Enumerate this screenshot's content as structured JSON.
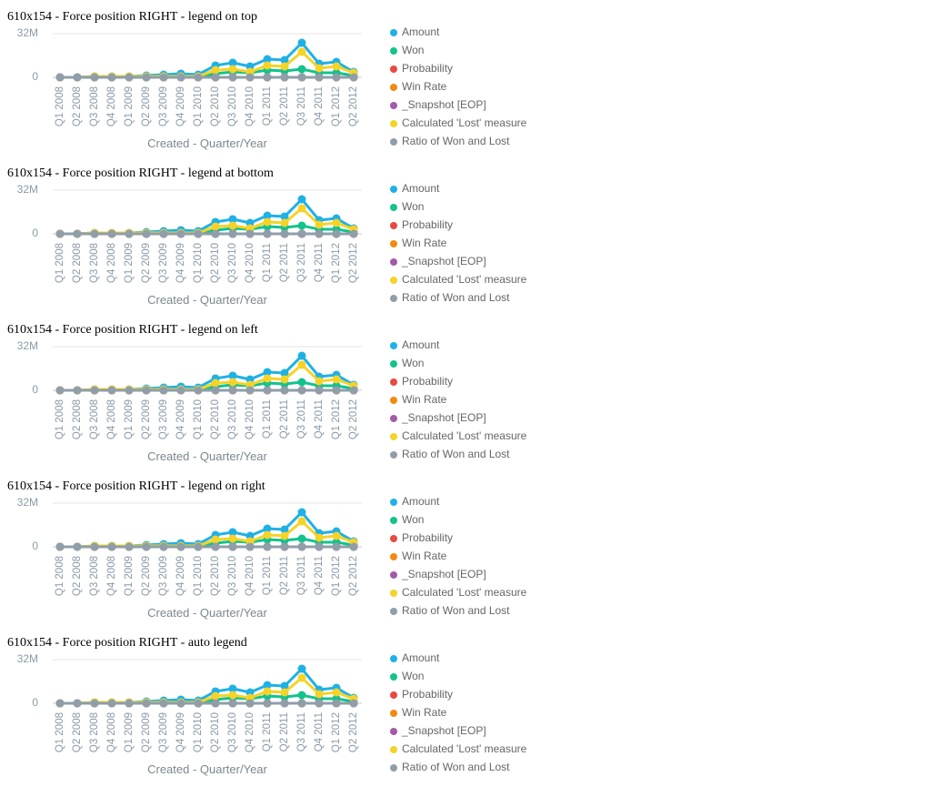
{
  "chart_data": [
    {
      "type": "line",
      "title": "610x154 - Force position RIGHT - legend on top",
      "x_label": "Created - Quarter/Year",
      "legend": "right",
      "grid": true,
      "categories": [
        "Q1 2008",
        "Q2 2008",
        "Q3 2008",
        "Q4 2008",
        "Q1 2009",
        "Q2 2009",
        "Q3 2009",
        "Q4 2009",
        "Q1 2010",
        "Q2 2010",
        "Q3 2010",
        "Q4 2010",
        "Q1 2011",
        "Q2 2011",
        "Q3 2011",
        "Q4 2011",
        "Q1 2012",
        "Q2 2012"
      ],
      "ylim": [
        0,
        32000000
      ],
      "yticks": [
        0,
        {
          "value": 32000000,
          "label": "32M"
        }
      ],
      "series": [
        {
          "name": "Amount",
          "color": "#1fb1e6",
          "values": [
            0,
            0,
            700000,
            700000,
            700000,
            1300000,
            2000000,
            2700000,
            2000000,
            8700000,
            10700000,
            8000000,
            13300000,
            12700000,
            25300000,
            10000000,
            11300000,
            4000000
          ]
        },
        {
          "name": "Won",
          "color": "#13c28d",
          "values": [
            0,
            0,
            0,
            0,
            0,
            0,
            0,
            0,
            0,
            2700000,
            4000000,
            3300000,
            5300000,
            4700000,
            6000000,
            3300000,
            3300000,
            1300000
          ]
        },
        {
          "name": "Probability",
          "color": "#e94a3f",
          "values": [
            0,
            0,
            0,
            0,
            0,
            0,
            0,
            0,
            0,
            0,
            0,
            0,
            0,
            0,
            0,
            0,
            0,
            0
          ]
        },
        {
          "name": "Win Rate",
          "color": "#f28a0f",
          "values": [
            0,
            0,
            0,
            0,
            0,
            0,
            0,
            0,
            0,
            0,
            0,
            0,
            0,
            0,
            0,
            0,
            0,
            0
          ]
        },
        {
          "name": "_Snapshot [EOP]",
          "color": "#a45aa8",
          "values": [
            0,
            0,
            0,
            0,
            0,
            0,
            0,
            0,
            0,
            0,
            0,
            0,
            0,
            0,
            0,
            0,
            0,
            0
          ]
        },
        {
          "name": "Calculated 'Lost' measure",
          "color": "#f5d327",
          "values": [
            0,
            0,
            700000,
            700000,
            700000,
            700000,
            700000,
            700000,
            700000,
            5300000,
            6000000,
            4000000,
            8700000,
            8000000,
            18700000,
            6700000,
            8000000,
            3300000
          ]
        },
        {
          "name": "Ratio of Won and Lost",
          "color": "#8f9ea9",
          "values": [
            0,
            0,
            0,
            0,
            0,
            0,
            0,
            0,
            0,
            0,
            0,
            0,
            0,
            0,
            0,
            0,
            0,
            0
          ]
        }
      ]
    },
    {
      "type": "line",
      "title": "610x154 - Force position RIGHT - legend at bottom",
      "x_label": "Created - Quarter/Year",
      "legend": "right",
      "grid": true,
      "categories": [
        "Q1 2008",
        "Q2 2008",
        "Q3 2008",
        "Q4 2008",
        "Q1 2009",
        "Q2 2009",
        "Q3 2009",
        "Q4 2009",
        "Q1 2010",
        "Q2 2010",
        "Q3 2010",
        "Q4 2010",
        "Q1 2011",
        "Q2 2011",
        "Q3 2011",
        "Q4 2011",
        "Q1 2012",
        "Q2 2012"
      ],
      "ylim": [
        0,
        32000000
      ],
      "yticks": [
        0,
        {
          "value": 32000000,
          "label": "32M"
        }
      ],
      "series": [
        {
          "name": "Amount",
          "color": "#1fb1e6",
          "values": [
            0,
            0,
            700000,
            700000,
            700000,
            1300000,
            2000000,
            2700000,
            2000000,
            8700000,
            10700000,
            8000000,
            13300000,
            12700000,
            25300000,
            10000000,
            11300000,
            4000000
          ]
        },
        {
          "name": "Won",
          "color": "#13c28d",
          "values": [
            0,
            0,
            0,
            0,
            0,
            0,
            0,
            0,
            0,
            2700000,
            4000000,
            3300000,
            5300000,
            4700000,
            6000000,
            3300000,
            3300000,
            1300000
          ]
        },
        {
          "name": "Probability",
          "color": "#e94a3f",
          "values": [
            0,
            0,
            0,
            0,
            0,
            0,
            0,
            0,
            0,
            0,
            0,
            0,
            0,
            0,
            0,
            0,
            0,
            0
          ]
        },
        {
          "name": "Win Rate",
          "color": "#f28a0f",
          "values": [
            0,
            0,
            0,
            0,
            0,
            0,
            0,
            0,
            0,
            0,
            0,
            0,
            0,
            0,
            0,
            0,
            0,
            0
          ]
        },
        {
          "name": "_Snapshot [EOP]",
          "color": "#a45aa8",
          "values": [
            0,
            0,
            0,
            0,
            0,
            0,
            0,
            0,
            0,
            0,
            0,
            0,
            0,
            0,
            0,
            0,
            0,
            0
          ]
        },
        {
          "name": "Calculated 'Lost' measure",
          "color": "#f5d327",
          "values": [
            0,
            0,
            700000,
            700000,
            700000,
            700000,
            700000,
            700000,
            700000,
            5300000,
            6000000,
            4000000,
            8700000,
            8000000,
            18700000,
            6700000,
            8000000,
            3300000
          ]
        },
        {
          "name": "Ratio of Won and Lost",
          "color": "#8f9ea9",
          "values": [
            0,
            0,
            0,
            0,
            0,
            0,
            0,
            0,
            0,
            0,
            0,
            0,
            0,
            0,
            0,
            0,
            0,
            0
          ]
        }
      ]
    },
    {
      "type": "line",
      "title": "610x154 - Force position RIGHT - legend on left",
      "x_label": "Created - Quarter/Year",
      "legend": "right",
      "grid": true,
      "categories": [
        "Q1 2008",
        "Q2 2008",
        "Q3 2008",
        "Q4 2008",
        "Q1 2009",
        "Q2 2009",
        "Q3 2009",
        "Q4 2009",
        "Q1 2010",
        "Q2 2010",
        "Q3 2010",
        "Q4 2010",
        "Q1 2011",
        "Q2 2011",
        "Q3 2011",
        "Q4 2011",
        "Q1 2012",
        "Q2 2012"
      ],
      "ylim": [
        0,
        32000000
      ],
      "yticks": [
        0,
        {
          "value": 32000000,
          "label": "32M"
        }
      ],
      "series": [
        {
          "name": "Amount",
          "color": "#1fb1e6",
          "values": [
            0,
            0,
            700000,
            700000,
            700000,
            1300000,
            2000000,
            2700000,
            2000000,
            8700000,
            10700000,
            8000000,
            13300000,
            12700000,
            25300000,
            10000000,
            11300000,
            4000000
          ]
        },
        {
          "name": "Won",
          "color": "#13c28d",
          "values": [
            0,
            0,
            0,
            0,
            0,
            0,
            0,
            0,
            0,
            2700000,
            4000000,
            3300000,
            5300000,
            4700000,
            6000000,
            3300000,
            3300000,
            1300000
          ]
        },
        {
          "name": "Probability",
          "color": "#e94a3f",
          "values": [
            0,
            0,
            0,
            0,
            0,
            0,
            0,
            0,
            0,
            0,
            0,
            0,
            0,
            0,
            0,
            0,
            0,
            0
          ]
        },
        {
          "name": "Win Rate",
          "color": "#f28a0f",
          "values": [
            0,
            0,
            0,
            0,
            0,
            0,
            0,
            0,
            0,
            0,
            0,
            0,
            0,
            0,
            0,
            0,
            0,
            0
          ]
        },
        {
          "name": "_Snapshot [EOP]",
          "color": "#a45aa8",
          "values": [
            0,
            0,
            0,
            0,
            0,
            0,
            0,
            0,
            0,
            0,
            0,
            0,
            0,
            0,
            0,
            0,
            0,
            0
          ]
        },
        {
          "name": "Calculated 'Lost' measure",
          "color": "#f5d327",
          "values": [
            0,
            0,
            700000,
            700000,
            700000,
            700000,
            700000,
            700000,
            700000,
            5300000,
            6000000,
            4000000,
            8700000,
            8000000,
            18700000,
            6700000,
            8000000,
            3300000
          ]
        },
        {
          "name": "Ratio of Won and Lost",
          "color": "#8f9ea9",
          "values": [
            0,
            0,
            0,
            0,
            0,
            0,
            0,
            0,
            0,
            0,
            0,
            0,
            0,
            0,
            0,
            0,
            0,
            0
          ]
        }
      ]
    },
    {
      "type": "line",
      "title": "610x154 - Force position RIGHT - legend on right",
      "x_label": "Created - Quarter/Year",
      "legend": "right",
      "grid": true,
      "categories": [
        "Q1 2008",
        "Q2 2008",
        "Q3 2008",
        "Q4 2008",
        "Q1 2009",
        "Q2 2009",
        "Q3 2009",
        "Q4 2009",
        "Q1 2010",
        "Q2 2010",
        "Q3 2010",
        "Q4 2010",
        "Q1 2011",
        "Q2 2011",
        "Q3 2011",
        "Q4 2011",
        "Q1 2012",
        "Q2 2012"
      ],
      "ylim": [
        0,
        32000000
      ],
      "yticks": [
        0,
        {
          "value": 32000000,
          "label": "32M"
        }
      ],
      "series": [
        {
          "name": "Amount",
          "color": "#1fb1e6",
          "values": [
            0,
            0,
            700000,
            700000,
            700000,
            1300000,
            2000000,
            2700000,
            2000000,
            8700000,
            10700000,
            8000000,
            13300000,
            12700000,
            25300000,
            10000000,
            11300000,
            4000000
          ]
        },
        {
          "name": "Won",
          "color": "#13c28d",
          "values": [
            0,
            0,
            0,
            0,
            0,
            0,
            0,
            0,
            0,
            2700000,
            4000000,
            3300000,
            5300000,
            4700000,
            6000000,
            3300000,
            3300000,
            1300000
          ]
        },
        {
          "name": "Probability",
          "color": "#e94a3f",
          "values": [
            0,
            0,
            0,
            0,
            0,
            0,
            0,
            0,
            0,
            0,
            0,
            0,
            0,
            0,
            0,
            0,
            0,
            0
          ]
        },
        {
          "name": "Win Rate",
          "color": "#f28a0f",
          "values": [
            0,
            0,
            0,
            0,
            0,
            0,
            0,
            0,
            0,
            0,
            0,
            0,
            0,
            0,
            0,
            0,
            0,
            0
          ]
        },
        {
          "name": "_Snapshot [EOP]",
          "color": "#a45aa8",
          "values": [
            0,
            0,
            0,
            0,
            0,
            0,
            0,
            0,
            0,
            0,
            0,
            0,
            0,
            0,
            0,
            0,
            0,
            0
          ]
        },
        {
          "name": "Calculated 'Lost' measure",
          "color": "#f5d327",
          "values": [
            0,
            0,
            700000,
            700000,
            700000,
            700000,
            700000,
            700000,
            700000,
            5300000,
            6000000,
            4000000,
            8700000,
            8000000,
            18700000,
            6700000,
            8000000,
            3300000
          ]
        },
        {
          "name": "Ratio of Won and Lost",
          "color": "#8f9ea9",
          "values": [
            0,
            0,
            0,
            0,
            0,
            0,
            0,
            0,
            0,
            0,
            0,
            0,
            0,
            0,
            0,
            0,
            0,
            0
          ]
        }
      ]
    },
    {
      "type": "line",
      "title": "610x154 - Force position RIGHT - auto legend",
      "x_label": "Created - Quarter/Year",
      "legend": "right",
      "grid": true,
      "categories": [
        "Q1 2008",
        "Q2 2008",
        "Q3 2008",
        "Q4 2008",
        "Q1 2009",
        "Q2 2009",
        "Q3 2009",
        "Q4 2009",
        "Q1 2010",
        "Q2 2010",
        "Q3 2010",
        "Q4 2010",
        "Q1 2011",
        "Q2 2011",
        "Q3 2011",
        "Q4 2011",
        "Q1 2012",
        "Q2 2012"
      ],
      "ylim": [
        0,
        32000000
      ],
      "yticks": [
        0,
        {
          "value": 32000000,
          "label": "32M"
        }
      ],
      "series": [
        {
          "name": "Amount",
          "color": "#1fb1e6",
          "values": [
            0,
            0,
            700000,
            700000,
            700000,
            1300000,
            2000000,
            2700000,
            2000000,
            8700000,
            10700000,
            8000000,
            13300000,
            12700000,
            25300000,
            10000000,
            11300000,
            4000000
          ]
        },
        {
          "name": "Won",
          "color": "#13c28d",
          "values": [
            0,
            0,
            0,
            0,
            0,
            0,
            0,
            0,
            0,
            2700000,
            4000000,
            3300000,
            5300000,
            4700000,
            6000000,
            3300000,
            3300000,
            1300000
          ]
        },
        {
          "name": "Probability",
          "color": "#e94a3f",
          "values": [
            0,
            0,
            0,
            0,
            0,
            0,
            0,
            0,
            0,
            0,
            0,
            0,
            0,
            0,
            0,
            0,
            0,
            0
          ]
        },
        {
          "name": "Win Rate",
          "color": "#f28a0f",
          "values": [
            0,
            0,
            0,
            0,
            0,
            0,
            0,
            0,
            0,
            0,
            0,
            0,
            0,
            0,
            0,
            0,
            0,
            0
          ]
        },
        {
          "name": "_Snapshot [EOP]",
          "color": "#a45aa8",
          "values": [
            0,
            0,
            0,
            0,
            0,
            0,
            0,
            0,
            0,
            0,
            0,
            0,
            0,
            0,
            0,
            0,
            0,
            0
          ]
        },
        {
          "name": "Calculated 'Lost' measure",
          "color": "#f5d327",
          "values": [
            0,
            0,
            700000,
            700000,
            700000,
            700000,
            700000,
            700000,
            700000,
            5300000,
            6000000,
            4000000,
            8700000,
            8000000,
            18700000,
            6700000,
            8000000,
            3300000
          ]
        },
        {
          "name": "Ratio of Won and Lost",
          "color": "#8f9ea9",
          "values": [
            0,
            0,
            0,
            0,
            0,
            0,
            0,
            0,
            0,
            0,
            0,
            0,
            0,
            0,
            0,
            0,
            0,
            0
          ]
        }
      ]
    }
  ]
}
